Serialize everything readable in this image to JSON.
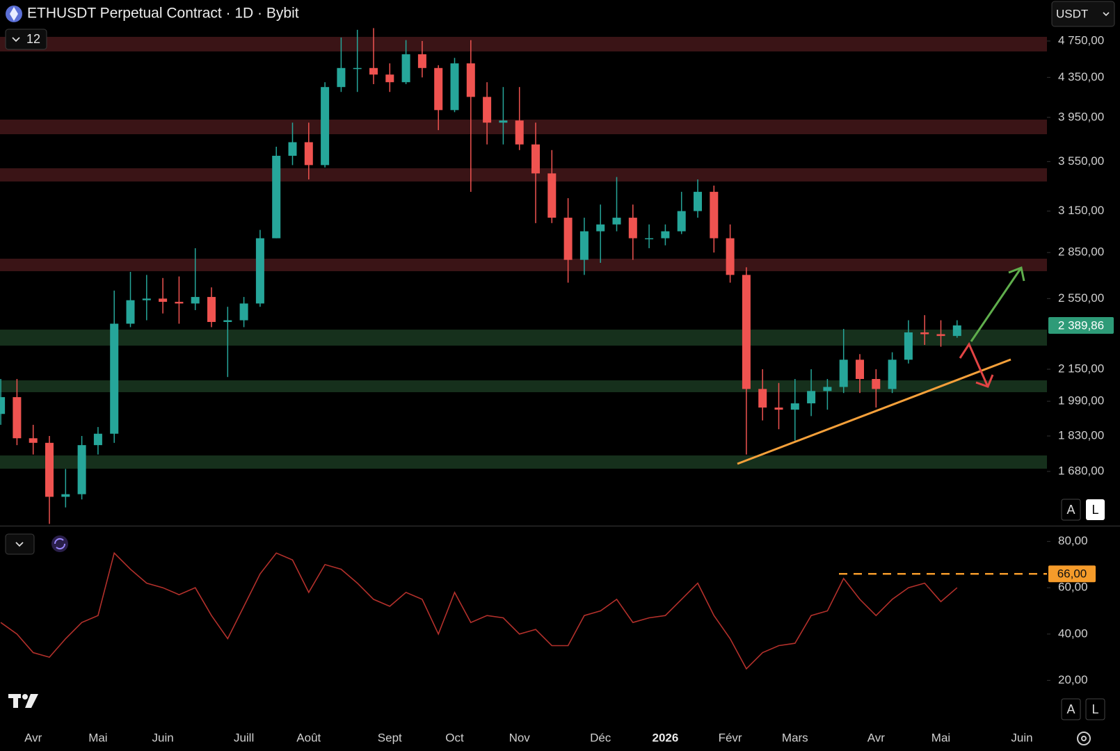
{
  "ui": {
    "currency": "USDT",
    "indicators": "12",
    "scale_buttons": [
      "A",
      "L"
    ]
  },
  "chart_data": [
    {
      "type": "candlestick",
      "title": "ETHUSDT Perpetual Contract · 1D · Bybit",
      "categories": [
        null,
        null,
        "Avr",
        null,
        null,
        null,
        "Mai",
        null,
        null,
        null,
        "Juin",
        null,
        null,
        null,
        null,
        "Juill",
        null,
        null,
        null,
        "Août",
        null,
        null,
        null,
        null,
        "Sept",
        null,
        null,
        null,
        "Oct",
        null,
        null,
        null,
        "Nov",
        null,
        null,
        null,
        null,
        "Déc",
        null,
        null,
        null,
        "2026",
        null,
        null,
        null,
        "Févr",
        null,
        null,
        null,
        "Mars",
        null,
        null,
        null,
        null,
        "Avr",
        null,
        null,
        null,
        "Mai",
        null,
        null,
        null,
        null,
        "Juin"
      ],
      "open": [
        1930,
        2010,
        1820,
        1800,
        1580,
        1590,
        1790,
        1840,
        2400,
        2540,
        2550,
        2530,
        2520,
        2560,
        2410,
        2420,
        2520,
        2950,
        3600,
        3720,
        3520,
        4250,
        4450,
        4450,
        4380,
        4300,
        4600,
        4450,
        4020,
        4500,
        4150,
        3900,
        3920,
        3700,
        3450,
        3100,
        2800,
        3000,
        3050,
        3100,
        2950,
        2950,
        3000,
        3150,
        3300,
        2950,
        2700,
        2050,
        1960,
        1950,
        1980,
        2040,
        2060,
        2200,
        2100,
        2050,
        2200,
        2350,
        2340,
        2330,
        null,
        null,
        null,
        null
      ],
      "high": [
        2100,
        2100,
        1880,
        1830,
        1690,
        1830,
        1870,
        2600,
        2720,
        2700,
        2680,
        2690,
        2880,
        2620,
        2500,
        2560,
        3010,
        3680,
        3900,
        3900,
        4300,
        4790,
        4880,
        4900,
        4500,
        4760,
        4750,
        4480,
        4560,
        4760,
        4300,
        4250,
        4250,
        3900,
        3650,
        3250,
        3100,
        3200,
        3420,
        3200,
        3050,
        3050,
        3300,
        3400,
        3350,
        3050,
        2750,
        2150,
        2080,
        2100,
        2150,
        2100,
        2370,
        2230,
        2150,
        2240,
        2420,
        2450,
        2420,
        2420,
        null,
        null,
        null,
        null
      ],
      "low": [
        1880,
        1790,
        1750,
        1480,
        1540,
        1570,
        1750,
        1800,
        2380,
        2420,
        2460,
        2400,
        2480,
        2380,
        2110,
        2380,
        2500,
        2950,
        3520,
        3400,
        3500,
        4200,
        4200,
        4280,
        4200,
        4280,
        4350,
        3830,
        4000,
        3300,
        3700,
        3700,
        3650,
        3060,
        3060,
        2650,
        2700,
        2780,
        3000,
        2800,
        2880,
        2900,
        2980,
        3100,
        2850,
        2650,
        1750,
        1900,
        1860,
        1810,
        1920,
        1950,
        2030,
        2030,
        1960,
        2030,
        2180,
        2280,
        2270,
        2320,
        null,
        null,
        null,
        null
      ],
      "close": [
        2010,
        1820,
        1800,
        1580,
        1590,
        1790,
        1840,
        2400,
        2540,
        2550,
        2530,
        2520,
        2560,
        2410,
        2420,
        2520,
        2950,
        3600,
        3720,
        3520,
        4250,
        4450,
        4450,
        4380,
        4300,
        4600,
        4450,
        4020,
        4500,
        4150,
        3900,
        3920,
        3700,
        3450,
        3100,
        2800,
        3000,
        3050,
        3100,
        2950,
        2950,
        3000,
        3150,
        3300,
        2950,
        2700,
        2050,
        1960,
        1950,
        1980,
        2040,
        2060,
        2200,
        2100,
        2050,
        2200,
        2350,
        2340,
        2330,
        2390,
        null,
        null,
        null,
        null
      ],
      "up_color": "#26a69a",
      "down_color": "#ef5350",
      "log_scale": true,
      "ylim": [
        1476,
        4920
      ],
      "yticks": [
        {
          "value": 4750,
          "label": "4 750,00"
        },
        {
          "value": 4350,
          "label": "4 350,00"
        },
        {
          "value": 3950,
          "label": "3 950,00"
        },
        {
          "value": 3550,
          "label": "3 550,00"
        },
        {
          "value": 3150,
          "label": "3 150,00"
        },
        {
          "value": 2850,
          "label": "2 850,00"
        },
        {
          "value": 2550,
          "label": "2 550,00"
        },
        {
          "value": 2150,
          "label": "2 150,00"
        },
        {
          "value": 1990,
          "label": "1 990,00"
        },
        {
          "value": 1830,
          "label": "1 830,00"
        },
        {
          "value": 1680,
          "label": "1 680,00"
        }
      ],
      "last_price": {
        "value": 2389.86,
        "label": "2 389,86"
      },
      "last_price_color": "#2e9b78"
    },
    {
      "type": "line",
      "color": "#b3302b",
      "values": [
        45,
        40,
        32,
        30,
        38,
        45,
        48,
        75,
        68,
        62,
        60,
        57,
        60,
        48,
        38,
        52,
        66,
        75,
        72,
        58,
        70,
        68,
        62,
        55,
        52,
        58,
        55,
        40,
        58,
        45,
        48,
        47,
        40,
        42,
        35,
        35,
        48,
        50,
        55,
        45,
        47,
        48,
        55,
        62,
        48,
        38,
        25,
        32,
        35,
        36,
        48,
        50,
        64,
        55,
        48,
        55,
        60,
        62,
        54,
        60,
        null,
        null,
        null,
        null
      ],
      "ylim": [
        0,
        86.5
      ],
      "yticks": [
        {
          "value": 80,
          "label": "80,00"
        },
        {
          "value": 60,
          "label": "60,00"
        },
        {
          "value": 40,
          "label": "40,00"
        },
        {
          "value": 20,
          "label": "20,00"
        }
      ],
      "level": {
        "value": 66,
        "label": "66,00"
      },
      "level_color": "#f59b2a"
    }
  ]
}
